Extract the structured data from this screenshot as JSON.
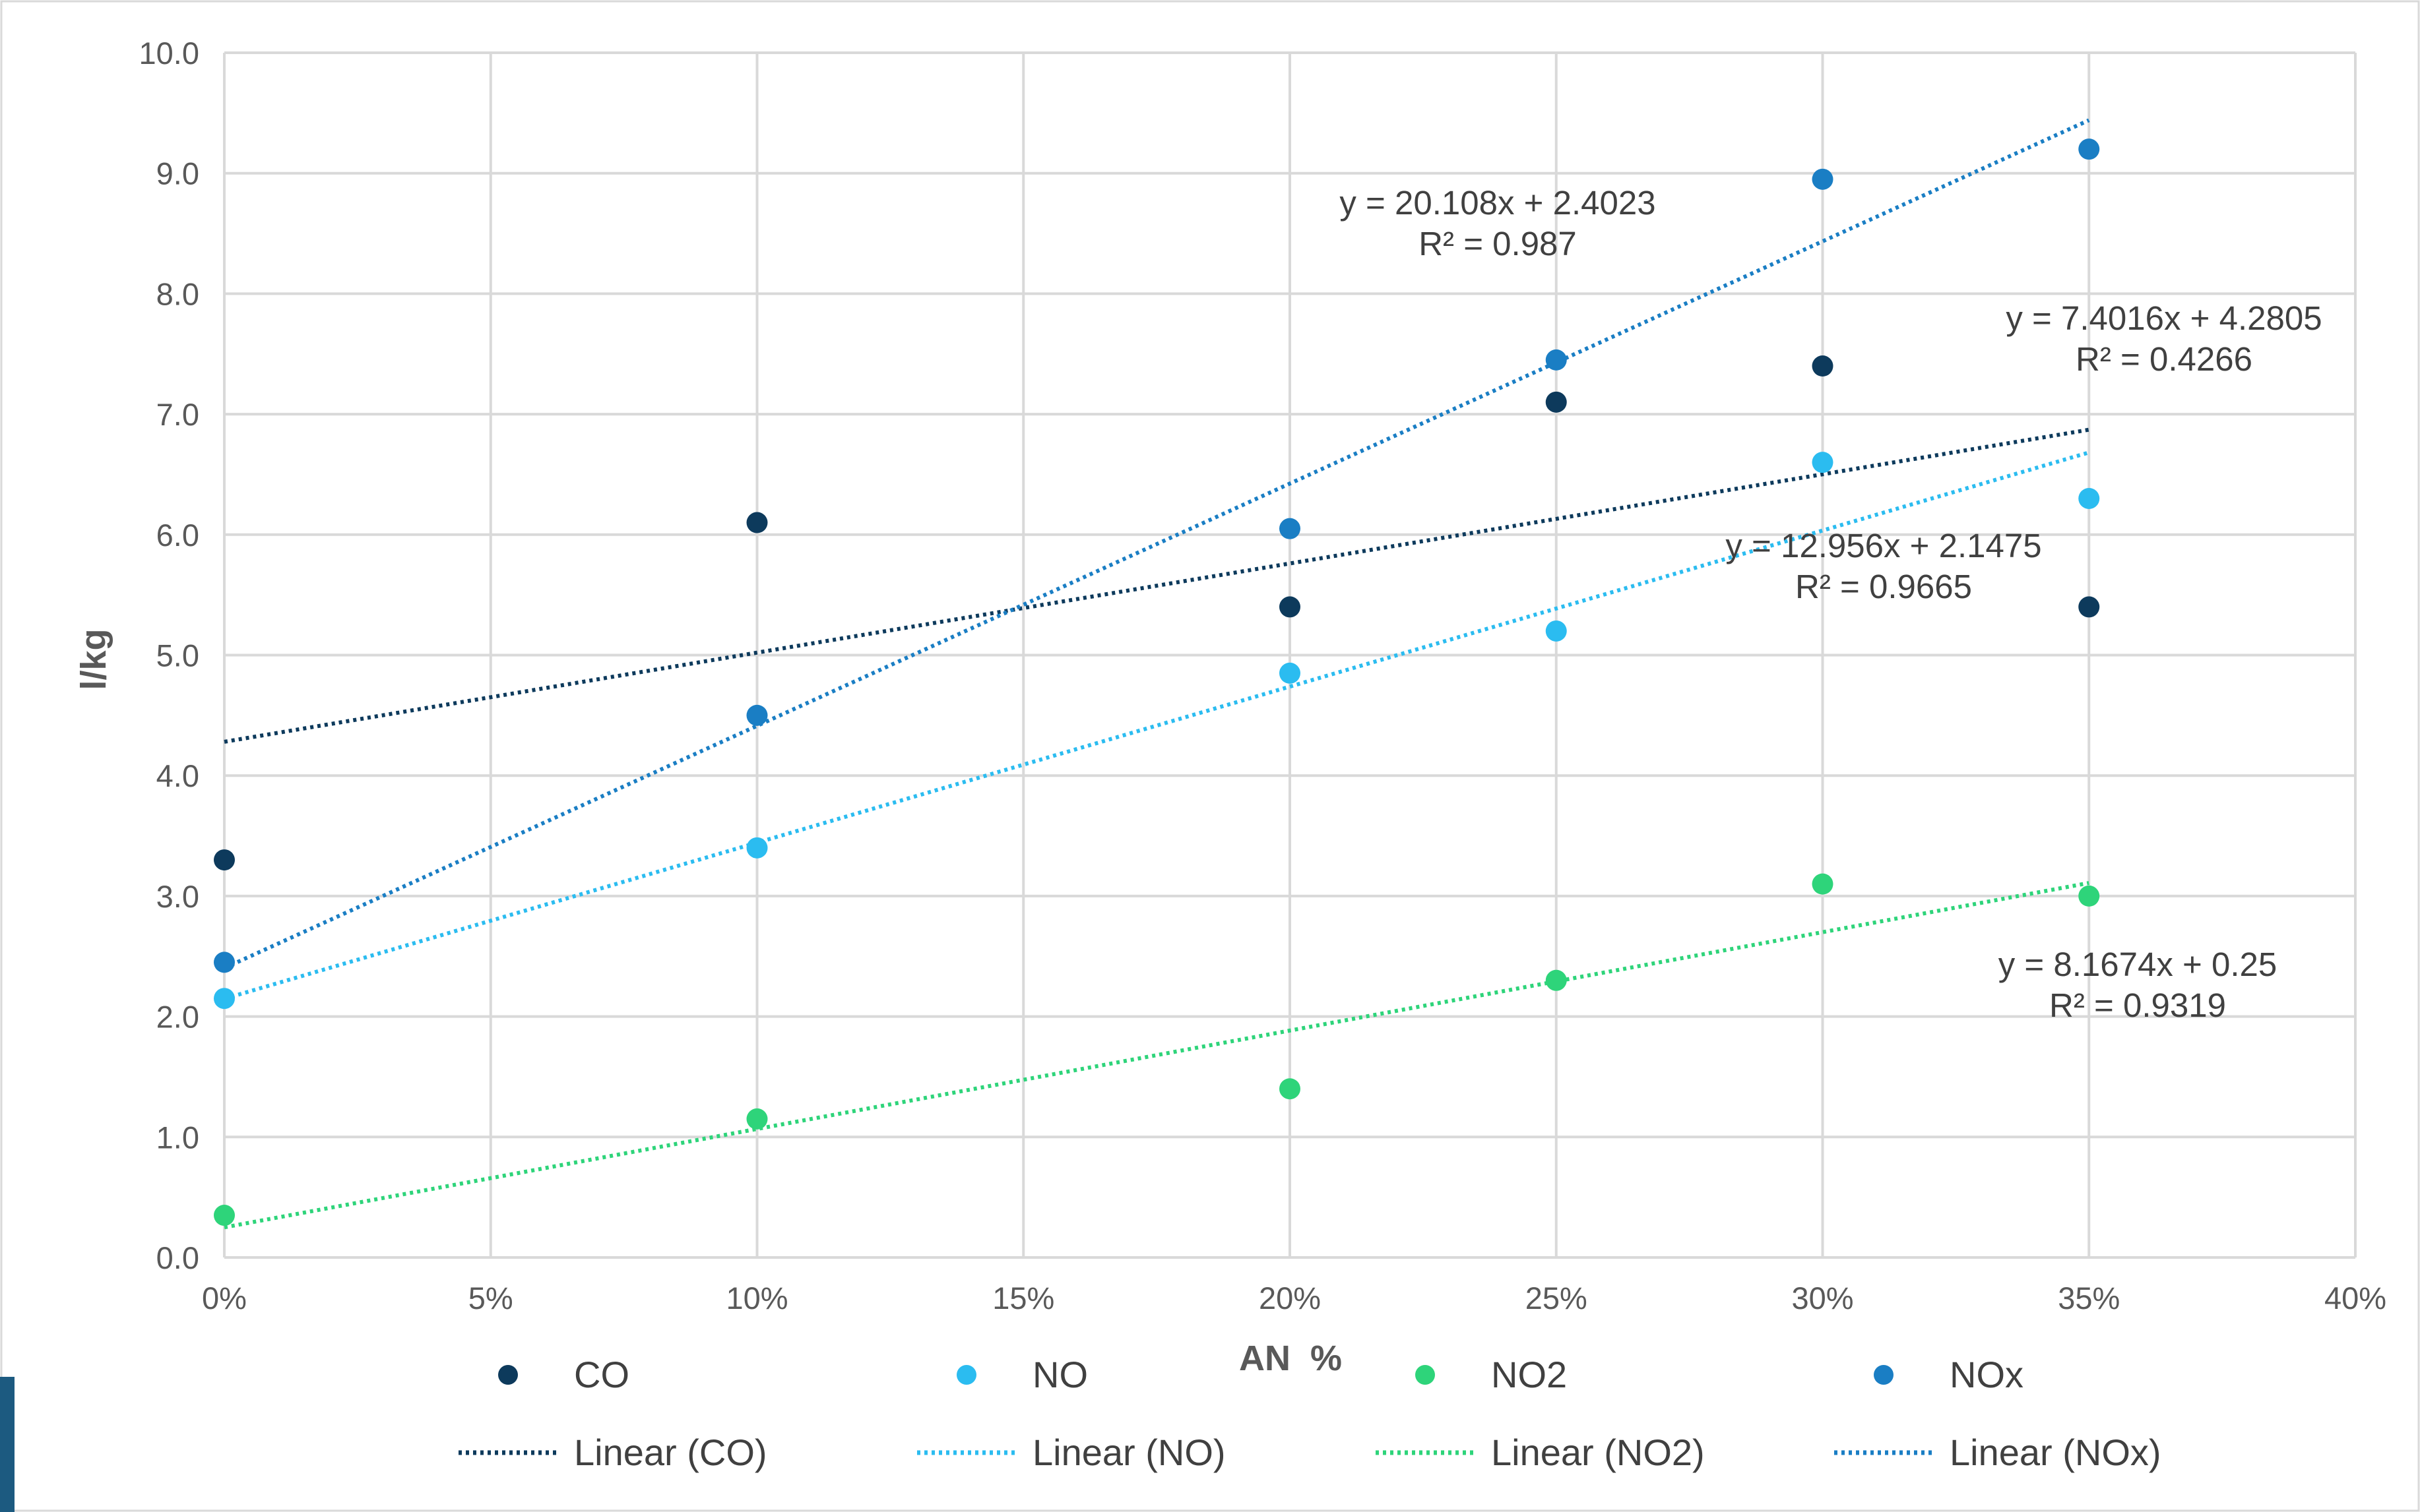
{
  "chart_data": {
    "type": "scatter",
    "xlabel": "AN  %",
    "ylabel": "l/kg",
    "xlim": [
      0,
      0.4
    ],
    "ylim": [
      0,
      10
    ],
    "x_ticks": [
      "0%",
      "5%",
      "10%",
      "15%",
      "20%",
      "25%",
      "30%",
      "35%",
      "40%"
    ],
    "y_ticks": [
      "0.0",
      "1.0",
      "2.0",
      "3.0",
      "4.0",
      "5.0",
      "6.0",
      "7.0",
      "8.0",
      "9.0",
      "10.0"
    ],
    "grid": true,
    "legend_position": "bottom",
    "series": [
      {
        "name": "CO",
        "color": "#0d3a5c",
        "x": [
          0,
          0.1,
          0.2,
          0.25,
          0.3,
          0.35
        ],
        "y": [
          3.3,
          6.1,
          5.4,
          7.1,
          7.4,
          5.4
        ],
        "trendline": {
          "name": "Linear (CO)",
          "slope": 7.4016,
          "intercept": 4.2805,
          "x_range": [
            0,
            0.35
          ]
        }
      },
      {
        "name": "NO",
        "color": "#2bbcf0",
        "x": [
          0,
          0.1,
          0.2,
          0.25,
          0.3,
          0.35
        ],
        "y": [
          2.15,
          3.4,
          4.85,
          5.2,
          6.6,
          6.3
        ],
        "trendline": {
          "name": "Linear (NO)",
          "slope": 12.956,
          "intercept": 2.1475,
          "x_range": [
            0,
            0.35
          ]
        }
      },
      {
        "name": "NO2",
        "color": "#2ed47a",
        "x": [
          0,
          0.1,
          0.2,
          0.25,
          0.3,
          0.35
        ],
        "y": [
          0.35,
          1.15,
          1.4,
          2.3,
          3.1,
          3.0
        ],
        "trendline": {
          "name": "Linear (NO2)",
          "slope": 8.1674,
          "intercept": 0.25,
          "x_range": [
            0,
            0.35
          ]
        }
      },
      {
        "name": "NOx",
        "color": "#1a7ec4",
        "x": [
          0,
          0.1,
          0.2,
          0.25,
          0.3,
          0.35
        ],
        "y": [
          2.45,
          4.5,
          6.05,
          7.45,
          8.95,
          9.2
        ],
        "trendline": {
          "name": "Linear (NOx)",
          "slope": 20.108,
          "intercept": 2.4023,
          "x_range": [
            0,
            0.35
          ]
        }
      }
    ],
    "annotations": [
      {
        "lines": [
          "y = 20.108x + 2.4023",
          "R² = 0.987"
        ]
      },
      {
        "lines": [
          "y = 7.4016x + 4.2805",
          "R² = 0.4266"
        ]
      },
      {
        "lines": [
          "y = 12.956x + 2.1475",
          "R² = 0.9665"
        ]
      },
      {
        "lines": [
          "y = 8.1674x + 0.25",
          "R² = 0.9319"
        ]
      }
    ]
  }
}
